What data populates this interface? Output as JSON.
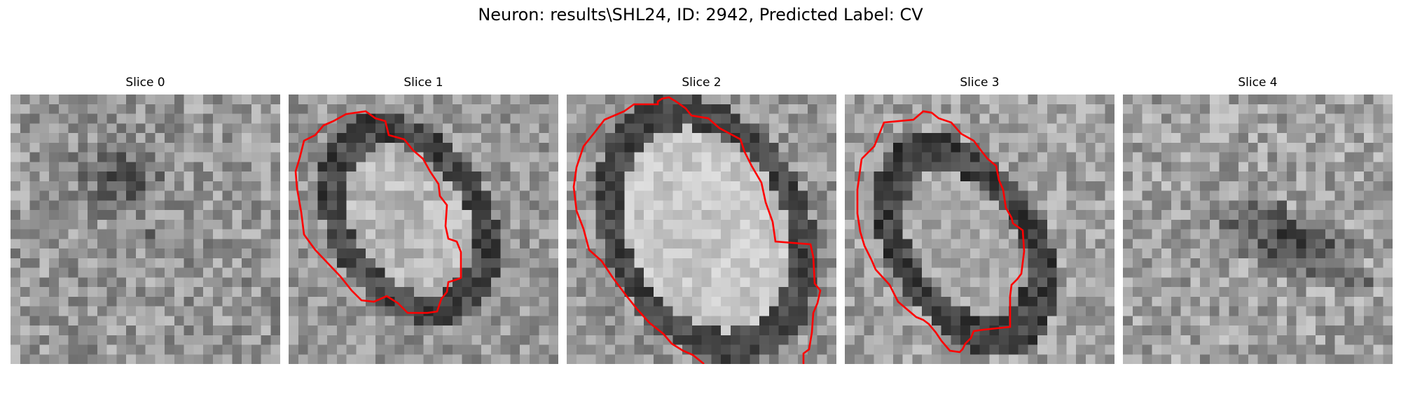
{
  "figure": {
    "title": "Neuron: results\\SHL24, ID: 2942, Predicted Label: CV"
  },
  "colors": {
    "background": "#ffffff",
    "outline": "#ff0000",
    "colormap": "gray"
  },
  "slices": [
    {
      "title": "Slice 0",
      "has_outline": false,
      "texture": "dark blob upper-center"
    },
    {
      "title": "Slice 1",
      "has_outline": true,
      "texture": "oval cell body with dark membrane"
    },
    {
      "title": "Slice 2",
      "has_outline": true,
      "texture": "large bright oval cell body"
    },
    {
      "title": "Slice 3",
      "has_outline": true,
      "texture": "oval cell body with dark membrane"
    },
    {
      "title": "Slice 4",
      "has_outline": false,
      "texture": "dark diagonal band lower-right"
    }
  ]
}
